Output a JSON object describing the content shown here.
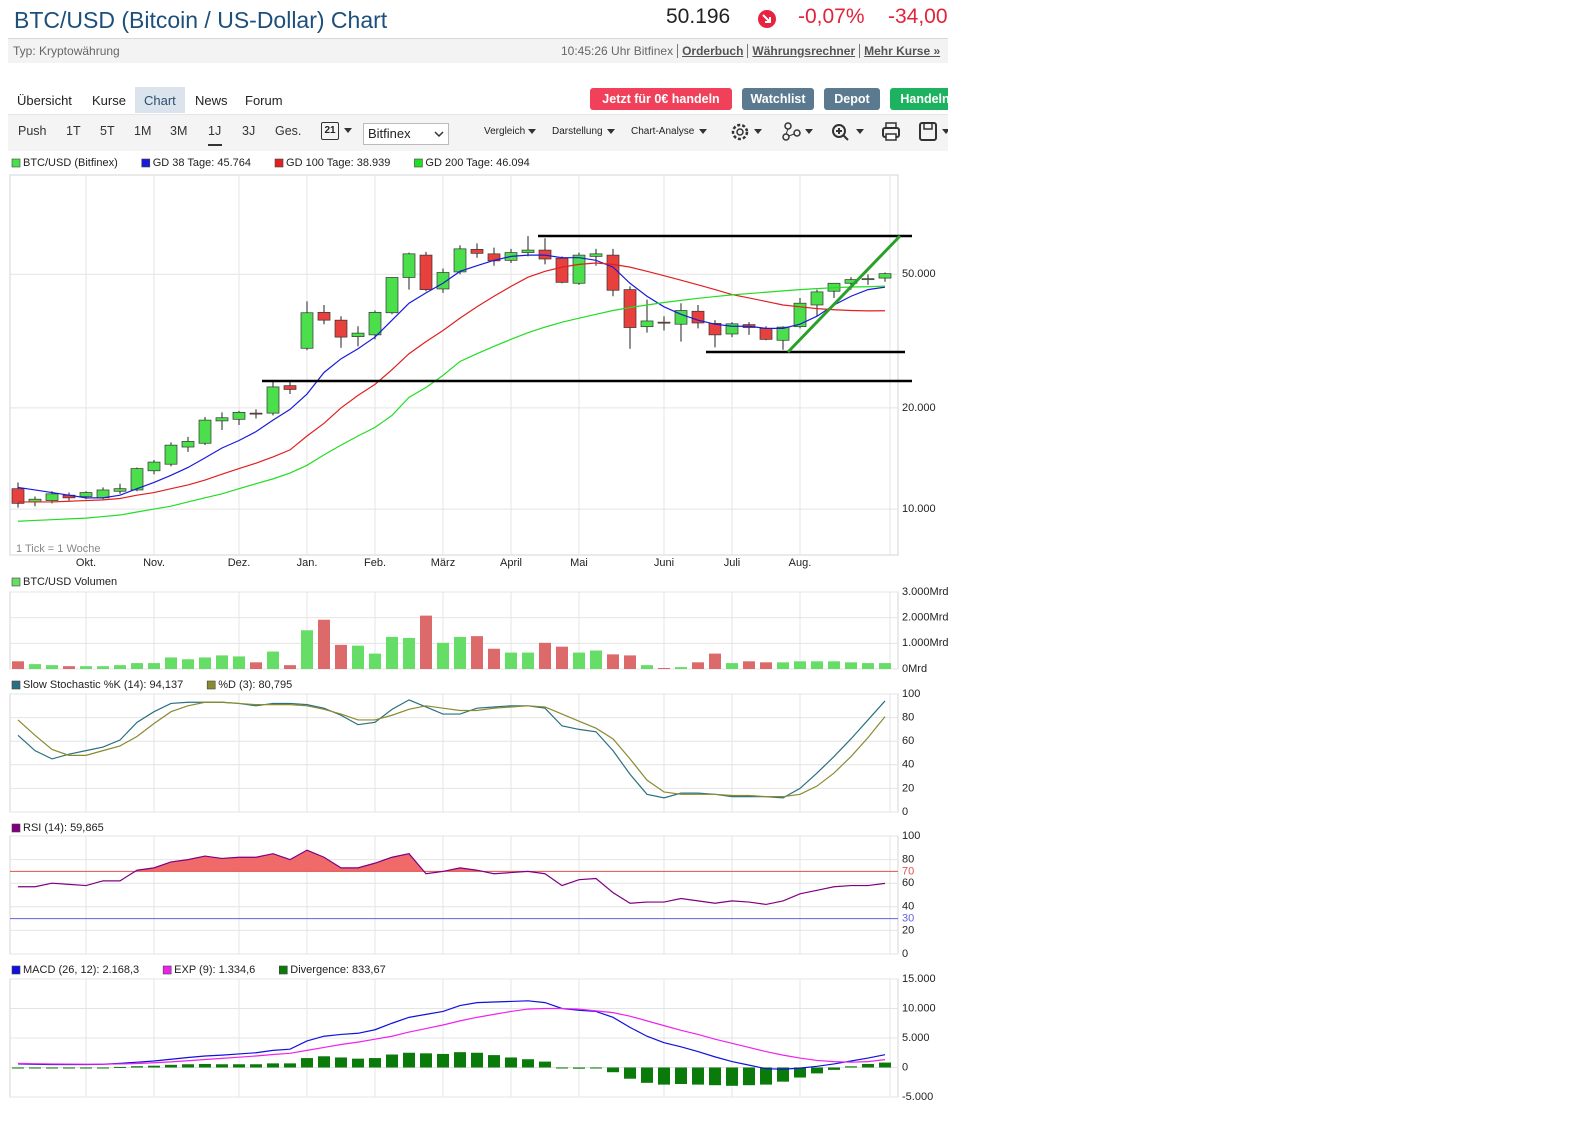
{
  "header": {
    "title": "BTC/USD (Bitcoin / US-Dollar) Chart",
    "price": "50.196",
    "change_pct": "-0,07%",
    "change_abs": "-34,00",
    "type": "Typ: Kryptowährung",
    "timestamp": "10:45:26 Uhr Bitfinex",
    "links": [
      "Orderbuch",
      "Währungsrechner",
      "Mehr Kurse »"
    ]
  },
  "nav": {
    "tabs": [
      "Übersicht",
      "Kurse",
      "Chart",
      "News",
      "Forum"
    ],
    "buttons": [
      "Jetzt für 0€ handeln",
      "Watchlist",
      "Depot",
      "Handeln"
    ]
  },
  "toolbar": {
    "periods": [
      "Push",
      "1T",
      "5T",
      "1M",
      "3M",
      "1J",
      "3J",
      "Ges."
    ],
    "calendar_day": "21",
    "exchange": "Bitfinex",
    "menus": [
      "Vergleich",
      "Darstellung",
      "Chart-Analyse"
    ]
  },
  "chart_data": [
    {
      "type": "candlestick",
      "name": "BTC/USD (Bitfinex)",
      "color": "#4be04b",
      "up_color": "#4be04b",
      "down_color": "#e8403c",
      "log_scale": true,
      "note": "1 Tick = 1 Woche",
      "categories": [
        null,
        null,
        null,
        null,
        "Okt.",
        null,
        null,
        null,
        "Nov.",
        null,
        null,
        null,
        null,
        "Dez.",
        null,
        null,
        null,
        "Jan.",
        null,
        null,
        null,
        "Feb.",
        null,
        null,
        null,
        "März",
        null,
        null,
        null,
        "April",
        null,
        null,
        null,
        "Mai",
        null,
        null,
        null,
        null,
        "Juni",
        null,
        null,
        null,
        "Juli",
        null,
        null,
        null,
        "Aug.",
        null,
        null,
        null,
        null,
        null
      ],
      "open": [
        11500,
        10500,
        10600,
        11000,
        10900,
        10800,
        11300,
        11400,
        13000,
        13600,
        15300,
        15700,
        18300,
        18500,
        19300,
        19300,
        23300,
        30100,
        38500,
        36500,
        32600,
        33000,
        38400,
        48900,
        57000,
        45200,
        50800,
        59300,
        57500,
        55000,
        58000,
        59000,
        55800,
        47000,
        56500,
        57000,
        45000,
        34900,
        36000,
        35500,
        38800,
        35700,
        33200,
        35400,
        34500,
        31800,
        34900,
        40500,
        44500,
        47000,
        48200,
        48700
      ],
      "high": [
        12000,
        10900,
        11300,
        11200,
        11300,
        11600,
        11900,
        13300,
        14000,
        15800,
        16400,
        18800,
        19400,
        19600,
        19800,
        24000,
        24100,
        41500,
        40500,
        37500,
        35000,
        39000,
        49000,
        58000,
        58300,
        52000,
        61000,
        61800,
        60000,
        59500,
        64900,
        64000,
        56500,
        58000,
        59500,
        59500,
        46000,
        42000,
        37500,
        41000,
        40500,
        36500,
        36000,
        36000,
        35000,
        35000,
        42500,
        45000,
        47000,
        49000,
        49900,
        50600
      ],
      "low": [
        10100,
        10200,
        10400,
        10600,
        10700,
        10700,
        11100,
        11300,
        12700,
        13400,
        14800,
        15500,
        17200,
        17800,
        18600,
        19000,
        22000,
        29700,
        35500,
        30200,
        30500,
        32000,
        38000,
        45000,
        44500,
        44000,
        50000,
        56000,
        53000,
        54000,
        56500,
        53500,
        47000,
        46500,
        53000,
        43000,
        30000,
        33500,
        34000,
        31500,
        34500,
        30300,
        32500,
        33000,
        31800,
        29800,
        34500,
        37500,
        42500,
        45000,
        46500,
        47500
      ],
      "close": [
        10400,
        10700,
        11100,
        10800,
        11200,
        11400,
        11500,
        13200,
        13800,
        15500,
        15900,
        18400,
        18700,
        19400,
        19200,
        23100,
        22700,
        38400,
        36500,
        32500,
        33400,
        38500,
        48900,
        57500,
        45000,
        50600,
        59500,
        57700,
        54800,
        58000,
        59000,
        55500,
        47300,
        57000,
        57500,
        44800,
        34700,
        36300,
        35800,
        39000,
        35800,
        33000,
        35600,
        34700,
        32000,
        34800,
        41000,
        44300,
        47000,
        48200,
        48500,
        50196
      ],
      "series": [
        {
          "name": "GD 38 Tage: 45.764",
          "color": "#1a1ad8",
          "values": [
            11600,
            11400,
            11200,
            11000,
            10800,
            10800,
            11000,
            11500,
            12000,
            12600,
            13300,
            14200,
            15200,
            16000,
            17000,
            18400,
            19800,
            22000,
            25500,
            28000,
            30000,
            32500,
            36500,
            41000,
            44000,
            47000,
            51000,
            53000,
            55000,
            56500,
            57000,
            57000,
            56000,
            56000,
            55000,
            52500,
            47000,
            43000,
            40000,
            38000,
            36500,
            35500,
            35000,
            35000,
            34500,
            34500,
            35500,
            37500,
            40500,
            43000,
            45000,
            45764
          ]
        },
        {
          "name": "GD 100 Tage: 38.939",
          "color": "#e02020",
          "values": [
            10500,
            10500,
            10500,
            10550,
            10600,
            10650,
            10750,
            11000,
            11200,
            11500,
            11800,
            12200,
            12700,
            13200,
            13700,
            14300,
            15000,
            16500,
            18000,
            20000,
            21800,
            23500,
            26000,
            29000,
            31500,
            34000,
            37000,
            40000,
            43000,
            46000,
            49000,
            51000,
            52500,
            53500,
            54000,
            53500,
            52500,
            51000,
            49500,
            48000,
            46500,
            45000,
            43500,
            42500,
            41500,
            40500,
            40000,
            39500,
            39200,
            39000,
            38900,
            38939
          ]
        },
        {
          "name": "GD 200 Tage: 46.094",
          "color": "#22dd22",
          "values": [
            9200,
            9250,
            9300,
            9350,
            9400,
            9500,
            9600,
            9800,
            10000,
            10200,
            10500,
            10800,
            11100,
            11500,
            11900,
            12300,
            12800,
            13500,
            14500,
            15500,
            16500,
            17500,
            19000,
            21500,
            23000,
            25000,
            27500,
            29000,
            30500,
            32000,
            33500,
            34800,
            36000,
            37000,
            38000,
            39000,
            39800,
            40500,
            41200,
            41800,
            42400,
            42900,
            43400,
            43800,
            44200,
            44600,
            45000,
            45300,
            45600,
            45800,
            45900,
            46094
          ]
        }
      ],
      "ylim": [
        7300,
        98700
      ],
      "yticks": [
        {
          "value": 10000,
          "label": "10.000"
        },
        {
          "value": 20000,
          "label": "20.000"
        },
        {
          "value": 50000,
          "label": "50.000"
        }
      ]
    },
    {
      "type": "bar",
      "name": "BTC/USD Volumen",
      "color": "#66dd66",
      "up_color": "#66dd66",
      "down_color": "#dd6a6a",
      "values": [
        300,
        190,
        150,
        110,
        110,
        110,
        150,
        230,
        230,
        450,
        380,
        450,
        530,
        490,
        260,
        680,
        150,
        1510,
        1920,
        940,
        910,
        600,
        1250,
        1210,
        2080,
        1020,
        1250,
        1280,
        790,
        640,
        640,
        1020,
        870,
        640,
        720,
        570,
        530,
        150,
        40,
        75,
        260,
        600,
        230,
        300,
        260,
        260,
        300,
        300,
        300,
        260,
        230,
        230
      ],
      "ylim": [
        0,
        3000
      ],
      "yticks": [
        {
          "value": 0,
          "label": "0Mrd"
        },
        {
          "value": 1000,
          "label": "1.000Mrd"
        },
        {
          "value": 2000,
          "label": "2.000Mrd"
        },
        {
          "value": 3000,
          "label": "3.000Mrd"
        }
      ]
    },
    {
      "type": "line",
      "series": [
        {
          "name": "Slow Stochastic %K (14): 94,137",
          "color": "#2a7080",
          "values": [
            65,
            52,
            45,
            49,
            52,
            55,
            61,
            76,
            85,
            92,
            93,
            93,
            93,
            92,
            90,
            92,
            92,
            91,
            88,
            82,
            74,
            76,
            87,
            95,
            89,
            83,
            83,
            88,
            89,
            90,
            90,
            88,
            73,
            70,
            68,
            52,
            32,
            15,
            12,
            16,
            16,
            15,
            13,
            13,
            13,
            12,
            20,
            33,
            47,
            62,
            78,
            94.137
          ]
        },
        {
          "name": "%D (3): 80,795",
          "color": "#8a8a30",
          "values": [
            78,
            65,
            53,
            48,
            48,
            52,
            56,
            64,
            75,
            85,
            90,
            93,
            93,
            92,
            91,
            91,
            91,
            90,
            87,
            83,
            78,
            78,
            82,
            87,
            90,
            88,
            86,
            86,
            88,
            89,
            90,
            89,
            83,
            77,
            71,
            62,
            45,
            27,
            17,
            15,
            15,
            15,
            14,
            14,
            13,
            13,
            15,
            22,
            33,
            47,
            63,
            80.795
          ]
        }
      ],
      "ylim": [
        0,
        100
      ],
      "yticks": [
        0,
        20,
        40,
        60,
        80,
        100
      ]
    },
    {
      "type": "line",
      "series": [
        {
          "name": "RSI (14): 59,865",
          "color": "#800080",
          "values": [
            57,
            57,
            60,
            59,
            58,
            62,
            62,
            71,
            73,
            78,
            80,
            83,
            81,
            82,
            82,
            85,
            80,
            88,
            82,
            73,
            73,
            77,
            82,
            85,
            68,
            70,
            73,
            71,
            68,
            69,
            70,
            68,
            58,
            63,
            64,
            52,
            43,
            44,
            44,
            47,
            45,
            43,
            45,
            44,
            42,
            45,
            51,
            54,
            57,
            58,
            58,
            59.865
          ]
        }
      ],
      "ref_lines": [
        {
          "value": 70,
          "color": "#e05050",
          "fill": "#f06a6a"
        },
        {
          "value": 30,
          "color": "#6060e0"
        }
      ],
      "ylim": [
        0,
        100
      ],
      "yticks": [
        0,
        20,
        40,
        60,
        80,
        100
      ]
    },
    {
      "type": "combo",
      "series": [
        {
          "name": "MACD (26, 12): 2.168,3",
          "kind": "line",
          "color": "#1010e0",
          "values": [
            600,
            550,
            500,
            500,
            500,
            550,
            700,
            900,
            1100,
            1400,
            1700,
            1950,
            2100,
            2300,
            2500,
            2900,
            3100,
            4500,
            5300,
            5600,
            5800,
            6400,
            7500,
            8500,
            9000,
            9500,
            10500,
            11000,
            11100,
            11200,
            11300,
            11000,
            10000,
            9700,
            9500,
            8500,
            6800,
            5300,
            4200,
            3500,
            2700,
            1800,
            1000,
            400,
            -200,
            -300,
            -100,
            200,
            600,
            1100,
            1600,
            2168.3
          ]
        },
        {
          "name": "EXP (9): 1.334,6",
          "kind": "line",
          "color": "#ee22ee",
          "values": [
            700,
            650,
            600,
            580,
            560,
            560,
            600,
            680,
            800,
            950,
            1150,
            1350,
            1550,
            1750,
            1950,
            2200,
            2400,
            2900,
            3400,
            3900,
            4300,
            4800,
            5300,
            6000,
            6600,
            7200,
            7900,
            8500,
            9000,
            9500,
            9900,
            10000,
            10000,
            9900,
            9600,
            9300,
            8700,
            7900,
            7100,
            6300,
            5600,
            4800,
            4100,
            3400,
            2700,
            2100,
            1600,
            1200,
            1000,
            900,
            1000,
            1334.6
          ]
        },
        {
          "name": "Divergence: 833,67",
          "kind": "bar",
          "color": "#0a7a0a",
          "values": [
            -100,
            -100,
            -100,
            -80,
            -60,
            -10,
            100,
            220,
            300,
            450,
            550,
            600,
            550,
            550,
            550,
            700,
            700,
            1600,
            1900,
            1700,
            1500,
            1600,
            2200,
            2500,
            2400,
            2300,
            2600,
            2500,
            2100,
            1700,
            1400,
            1000,
            0,
            -200,
            -100,
            -800,
            -1900,
            -2600,
            -2900,
            -2800,
            -2900,
            -3000,
            -3100,
            -3000,
            -2900,
            -2400,
            -1700,
            -1000,
            -400,
            200,
            600,
            833.67
          ]
        }
      ],
      "ylim": [
        -5000,
        15000
      ],
      "yticks": [
        {
          "value": -5000,
          "label": "-5.000"
        },
        0,
        {
          "value": 5000,
          "label": "5.000"
        },
        {
          "value": 10000,
          "label": "10.000"
        },
        {
          "value": 15000,
          "label": "15.000"
        }
      ]
    }
  ]
}
